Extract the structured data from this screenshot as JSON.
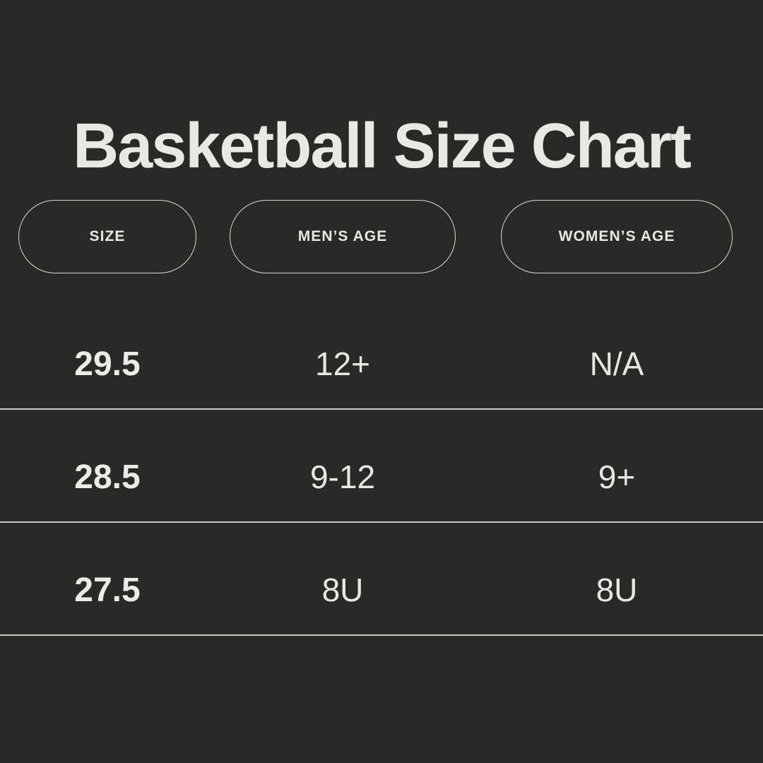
{
  "page": {
    "background_color": "#2a2928",
    "text_color": "#e9e7e1",
    "pill_border_color": "#dcdad4",
    "divider_color": "#cbc9c3"
  },
  "title": "Basketball Size Chart",
  "table": {
    "columns": [
      {
        "label": "SIZE"
      },
      {
        "label": "MEN’S AGE"
      },
      {
        "label": "WOMEN’S AGE"
      }
    ],
    "rows": [
      {
        "size": "29.5",
        "mens_age": "12+",
        "womens_age": "N/A"
      },
      {
        "size": "28.5",
        "mens_age": "9-12",
        "womens_age": "9+"
      },
      {
        "size": "27.5",
        "mens_age": "8U",
        "womens_age": "8U"
      }
    ]
  },
  "chart_data": {
    "type": "table",
    "title": "Basketball Size Chart",
    "columns": [
      "SIZE",
      "MEN’S AGE",
      "WOMEN’S AGE"
    ],
    "rows": [
      [
        "29.5",
        "12+",
        "N/A"
      ],
      [
        "28.5",
        "9-12",
        "9+"
      ],
      [
        "27.5",
        "8U",
        "8U"
      ]
    ]
  }
}
